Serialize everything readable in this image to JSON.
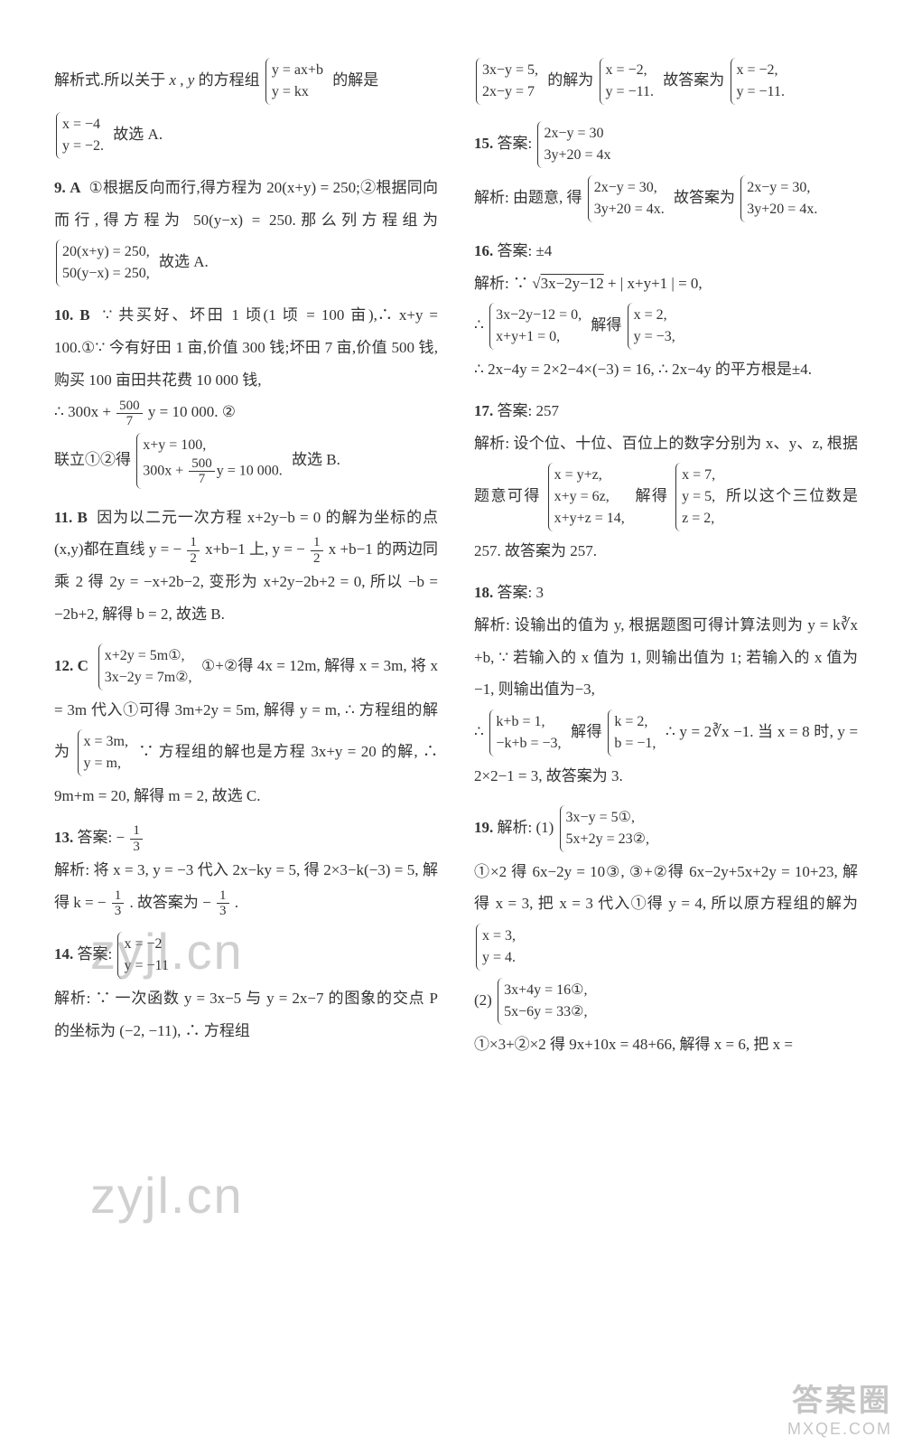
{
  "text_color": "#333333",
  "background_color": "#ffffff",
  "font_size_body": 17,
  "line_height": 2.1,
  "watermark_text": "zyjl.cn",
  "watermark_color": "rgba(120,120,120,0.35)",
  "corner_line1": "答案圈",
  "corner_line2": "MXQE.COM",
  "left": {
    "p8_a": "解析式.所以关于 ",
    "p8_b": " 的方程组",
    "p8_sys1_a": "y = ax+b",
    "p8_sys1_b": "y = kx",
    "p8_c": "的解是",
    "p8_sys2_a": "x = −4",
    "p8_sys2_b": "y = −2.",
    "p8_d": "故选 A.",
    "q9_num": "9.",
    "q9_ans": "A",
    "q9_a": "①根据反向而行,得方程为 20(x+y) = 250;②根据同向而行,得方程为 50(y−x) = 250.那么列方程组为",
    "q9_sys_a": "20(x+y) = 250,",
    "q9_sys_b": "50(y−x) = 250,",
    "q9_b": "故选 A.",
    "q10_num": "10.",
    "q10_ans": "B",
    "q10_a": "∵ 共买好、坏田 1 顷(1 顷 = 100 亩),∴ x+y = 100.①∵ 今有好田 1 亩,价值 300 钱;坏田 7 亩,价值 500 钱,购买 100 亩田共花费 10 000 钱,",
    "q10_b": "∴ 300x + ",
    "q10_frac_t": "500",
    "q10_frac_b": "7",
    "q10_c": "y = 10 000. ②",
    "q10_d": "联立①②得",
    "q10_sys_a": "x+y = 100,",
    "q10_sys_b_pre": "300x + ",
    "q10_sys_b_post": "y = 10 000.",
    "q10_e": "故选 B.",
    "q11_num": "11.",
    "q11_ans": "B",
    "q11_a": "因为以二元一次方程 x+2y−b = 0 的解为坐标的点(x,y)都在直线 y = −",
    "q11_half_t": "1",
    "q11_half_b": "2",
    "q11_b": "x+b−1 上, y = −",
    "q11_c": "x +b−1 的两边同乘 2 得 2y = −x+2b−2, 变形为 x+2y−2b+2 = 0, 所以 −b = −2b+2, 解得 b = 2, 故选 B.",
    "q12_num": "12.",
    "q12_ans": "C",
    "q12_sys_a": "x+2y = 5m①,",
    "q12_sys_b": "3x−2y = 7m②,",
    "q12_a": "①+②得 4x = 12m, 解得 x = 3m, 将 x = 3m 代入①可得 3m+2y = 5m, 解得 y = m, ∴ 方程组的解为",
    "q12_sys2_a": "x = 3m,",
    "q12_sys2_b": "y = m,",
    "q12_b": "∵ 方程组的解也是方程 3x+y = 20 的解, ∴ 9m+m = 20, 解得 m = 2, 故选 C.",
    "q13_num": "13.",
    "q13_label": "答案: −",
    "q13_frac_t": "1",
    "q13_frac_b": "3",
    "q13_a": "解析: 将 x = 3, y = −3 代入 2x−ky = 5, 得 2×3−k(−3) = 5, 解得 k = −",
    "q13_b": ". 故答案为 −",
    "q13_c": ".",
    "q14_num": "14.",
    "q14_label": "答案:",
    "q14_sys_a": "x = −2",
    "q14_sys_b": "y = −11",
    "q14_a": "解析: ∵ 一次函数 y = 3x−5 与 y = 2x−7 的图象的交点 P 的坐标为 (−2, −11), ∴ 方程组"
  },
  "right": {
    "p14_sys1_a": "3x−y = 5,",
    "p14_sys1_b": "2x−y = 7",
    "p14_a": "的解为",
    "p14_sys2_a": "x = −2,",
    "p14_sys2_b": "y = −11.",
    "p14_b": "故答案为",
    "q15_num": "15.",
    "q15_label": "答案:",
    "q15_sys_a": "2x−y = 30",
    "q15_sys_b": "3y+20 = 4x",
    "q15_a": "解析: 由题意, 得",
    "q15_sys2_a": "2x−y = 30,",
    "q15_sys2_b": "3y+20 = 4x.",
    "q15_b": "故答案为",
    "q15_sys3_a": "2x−y = 30,",
    "q15_sys3_b": "3y+20 = 4x.",
    "q16_num": "16.",
    "q16_label": "答案: ±4",
    "q16_a": "解析: ∵ ",
    "q16_rad": "3x−2y−12",
    "q16_b": " + | x+y+1 | = 0,",
    "q16_c": "∴",
    "q16_sys_a": "3x−2y−12 = 0,",
    "q16_sys_b": "x+y+1 = 0,",
    "q16_d": "解得",
    "q16_sys2_a": "x = 2,",
    "q16_sys2_b": "y = −3,",
    "q16_e": "∴ 2x−4y = 2×2−4×(−3) = 16, ∴ 2x−4y 的平方根是±4.",
    "q17_num": "17.",
    "q17_label": "答案: 257",
    "q17_a": "解析: 设个位、十位、百位上的数字分别为 x、y、z, 根据题意可得",
    "q17_sys_a": "x = y+z,",
    "q17_sys_b": "x+y = 6z,",
    "q17_sys_c": "x+y+z = 14,",
    "q17_b": "解得",
    "q17_sys2_a": "x = 7,",
    "q17_sys2_b": "y = 5,",
    "q17_sys2_c": "z = 2,",
    "q17_c": "所以这个三位数是 257. 故答案为 257.",
    "q18_num": "18.",
    "q18_label": "答案: 3",
    "q18_a": "解析: 设输出的值为 y, 根据题图可得计算法则为 y = k",
    "q18_root": "∛x",
    "q18_b": " +b, ∵ 若输入的 x 值为 1, 则输出值为 1; 若输入的 x 值为−1, 则输出值为−3,",
    "q18_c": "∴",
    "q18_sys_a": "k+b = 1,",
    "q18_sys_b": "−k+b = −3,",
    "q18_d": "解得",
    "q18_sys2_a": "k = 2,",
    "q18_sys2_b": "b = −1,",
    "q18_e": "∴ y = 2",
    "q18_f": " −1. 当 x = 8 时, y = 2×2−1 = 3, 故答案为 3.",
    "q19_num": "19.",
    "q19_a": "解析: (1)",
    "q19_sys_a": "3x−y = 5①,",
    "q19_sys_b": "5x+2y = 23②,",
    "q19_b": "①×2 得 6x−2y = 10③, ③+②得 6x−2y+5x+2y = 10+23, 解得 x = 3, 把 x = 3 代入①得 y = 4, 所以原方程组的解为",
    "q19_sys2_a": "x = 3,",
    "q19_sys2_b": "y = 4.",
    "q19_c": "(2)",
    "q19_sys3_a": "3x+4y = 16①,",
    "q19_sys3_b": "5x−6y = 33②,",
    "q19_d": "①×3+②×2 得 9x+10x = 48+66, 解得 x = 6, 把 x ="
  }
}
